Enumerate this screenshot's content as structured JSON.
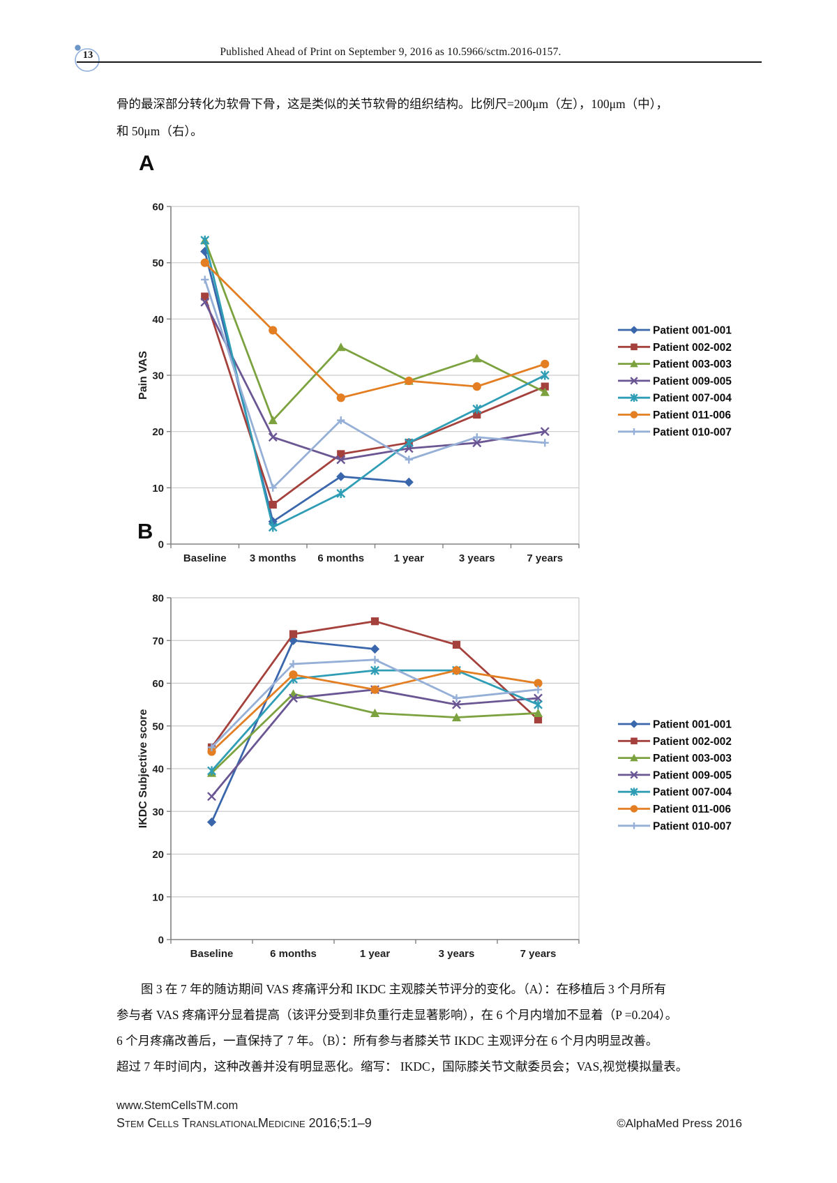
{
  "page": {
    "number": "13",
    "header": "Published Ahead of Print on September 9, 2016 as 10.5966/sctm.2016-0157."
  },
  "intro": {
    "lines": [
      "骨的最深部分转化为软骨下骨，这是类似的关节软骨的组织结构。比例尺=200μm（左），100μm（中），",
      "和 50μm（右）。"
    ]
  },
  "figure": {
    "panel_a": "A",
    "panel_b": "B"
  },
  "chart_data": [
    {
      "id": "pain-vas",
      "type": "line",
      "panel": "A",
      "title": "",
      "xlabel": "",
      "ylabel": "Pain VAS",
      "categories": [
        "Baseline",
        "3 months",
        "6 months",
        "1 year",
        "3 years",
        "7 years"
      ],
      "ylim": [
        0,
        60
      ],
      "ytick_step": 10,
      "grid": true,
      "legend_position": "right",
      "series": [
        {
          "name": "Patient 001-001",
          "color": "#3A67AC",
          "marker": "diamond",
          "values": [
            52,
            4,
            12,
            11,
            null,
            null
          ]
        },
        {
          "name": "Patient 002-002",
          "color": "#A5413C",
          "marker": "square",
          "values": [
            44,
            7,
            16,
            18,
            23,
            28
          ]
        },
        {
          "name": "Patient 003-003",
          "color": "#7BA23E",
          "marker": "triangle",
          "values": [
            54,
            22,
            35,
            29,
            33,
            27
          ]
        },
        {
          "name": "Patient 009-005",
          "color": "#6A5693",
          "marker": "x",
          "values": [
            43,
            19,
            15,
            17,
            18,
            20
          ]
        },
        {
          "name": "Patient 007-004",
          "color": "#2E9DB5",
          "marker": "star",
          "values": [
            54,
            3,
            9,
            18,
            24,
            30
          ]
        },
        {
          "name": "Patient 011-006",
          "color": "#E37E22",
          "marker": "circle",
          "values": [
            50,
            38,
            26,
            29,
            28,
            32
          ]
        },
        {
          "name": "Patient 010-007",
          "color": "#95AFD7",
          "marker": "plus",
          "values": [
            47,
            10,
            22,
            15,
            19,
            18
          ]
        }
      ]
    },
    {
      "id": "ikdc",
      "type": "line",
      "panel": "B",
      "title": "",
      "xlabel": "",
      "ylabel": "IKDC Subjective score",
      "categories": [
        "Baseline",
        "6 months",
        "1 year",
        "3 years",
        "7 years"
      ],
      "ylim": [
        0,
        80
      ],
      "ytick_step": 10,
      "grid": true,
      "legend_position": "right",
      "series": [
        {
          "name": "Patient 001-001",
          "color": "#3A67AC",
          "marker": "diamond",
          "values": [
            27.5,
            70,
            68,
            null,
            null
          ]
        },
        {
          "name": "Patient 002-002",
          "color": "#A5413C",
          "marker": "square",
          "values": [
            45,
            71.5,
            74.5,
            69,
            51.5
          ]
        },
        {
          "name": "Patient 003-003",
          "color": "#7BA23E",
          "marker": "triangle",
          "values": [
            39,
            57.5,
            53,
            52,
            53
          ]
        },
        {
          "name": "Patient 009-005",
          "color": "#6A5693",
          "marker": "x",
          "values": [
            33.5,
            56.5,
            58.5,
            55,
            56.5
          ]
        },
        {
          "name": "Patient 007-004",
          "color": "#2E9DB5",
          "marker": "star",
          "values": [
            39.5,
            61,
            63,
            63,
            55
          ]
        },
        {
          "name": "Patient 011-006",
          "color": "#E37E22",
          "marker": "circle",
          "values": [
            44,
            62,
            58.5,
            63,
            60
          ]
        },
        {
          "name": "Patient 010-007",
          "color": "#95AFD7",
          "marker": "plus",
          "values": [
            45,
            64.5,
            65.5,
            56.5,
            58.5
          ]
        }
      ]
    }
  ],
  "caption": {
    "lines": [
      "图 3 在 7 年的随访期间 VAS 疼痛评分和 IKDC 主观膝关节评分的变化。（A）：在移植后 3 个月所有",
      "参与者 VAS 疼痛评分显着提高（该评分受到非负重行走显著影响），在 6 个月内增加不显着（P =0.204）。",
      "6 个月疼痛改善后，一直保持了 7 年。（B）：所有参与者膝关节 IKDC 主观评分在 6 个月内明显改善。",
      "超过 7 年时间内，这种改善并没有明显恶化。缩写： IKDC，国际膝关节文献委员会；VAS,视觉模拟量表。"
    ]
  },
  "footer": {
    "website": "www.StemCellsTM.com",
    "journal": "Stem Cells TranslationalMedicine 2016;5:1–9",
    "copyright": "©AlphaMed Press 2016"
  }
}
